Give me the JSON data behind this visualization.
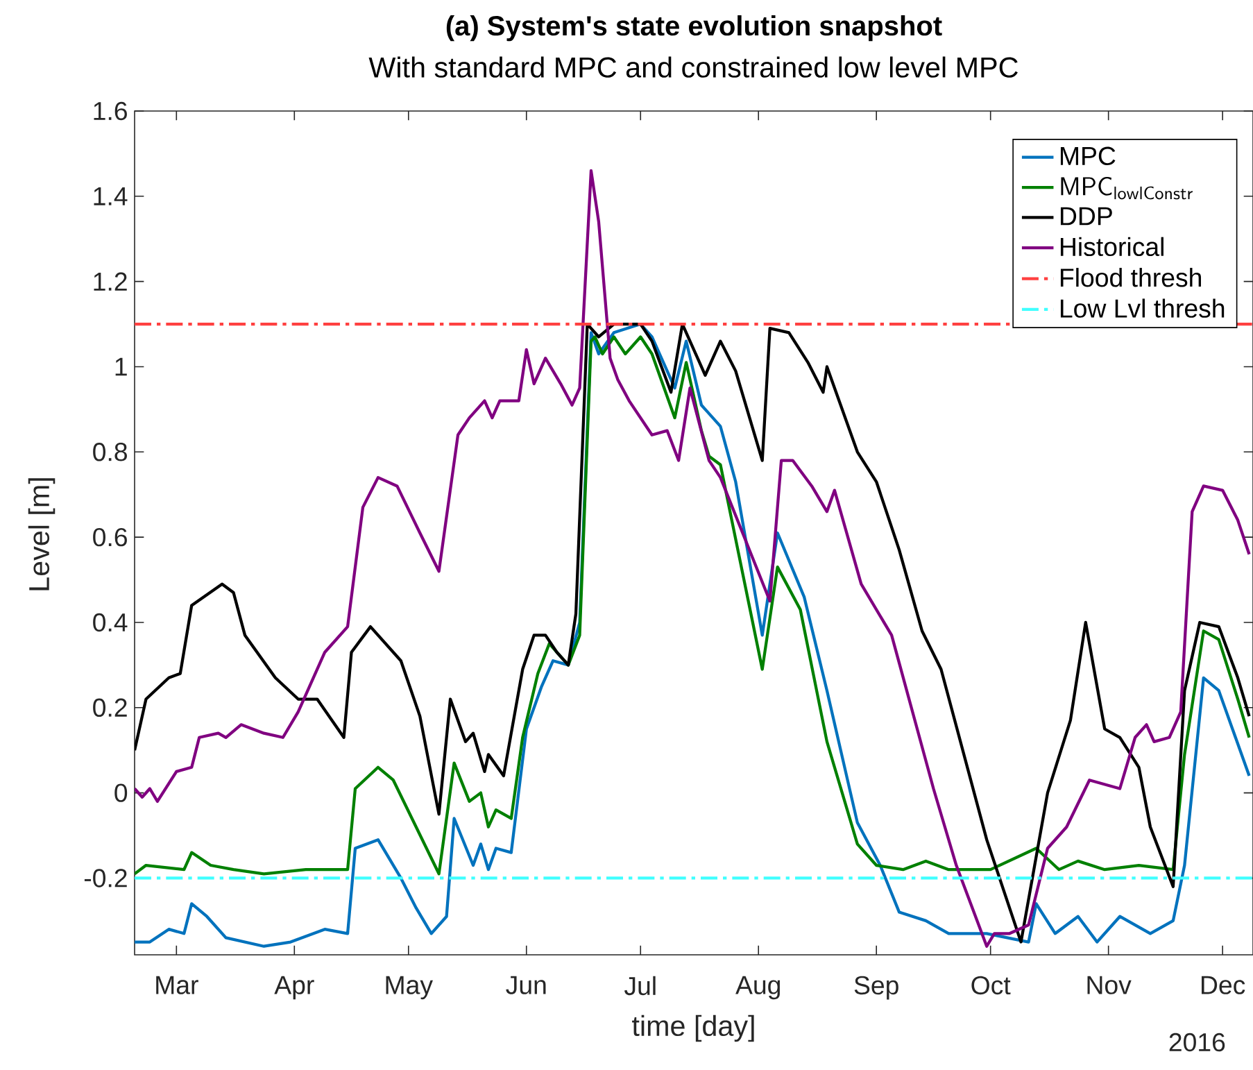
{
  "chart_data": {
    "type": "line",
    "title": "(a) System's state evolution snapshot",
    "subtitle": "With standard MPC and constrained low level MPC",
    "xlabel": "time [day]",
    "ylabel": "Level [m]",
    "annotations": [
      "2016"
    ],
    "xlim": [
      "2016-02-19",
      "2016-12-09"
    ],
    "xticks": [
      {
        "value": "2016-03-01",
        "label": "Mar"
      },
      {
        "value": "2016-04-01",
        "label": "Apr"
      },
      {
        "value": "2016-05-01",
        "label": "May"
      },
      {
        "value": "2016-06-01",
        "label": "Jun"
      },
      {
        "value": "2016-07-01",
        "label": "Jul"
      },
      {
        "value": "2016-08-01",
        "label": "Aug"
      },
      {
        "value": "2016-09-01",
        "label": "Sep"
      },
      {
        "value": "2016-10-01",
        "label": "Oct"
      },
      {
        "value": "2016-11-01",
        "label": "Nov"
      },
      {
        "value": "2016-12-01",
        "label": "Dec"
      }
    ],
    "ylim": [
      -0.38,
      1.6
    ],
    "yticks": [
      -0.2,
      0,
      0.2,
      0.4,
      0.6,
      0.8,
      1,
      1.2,
      1.4,
      1.6
    ],
    "legend": "top right",
    "line_style": "solid",
    "series": [
      {
        "name": "MPC",
        "color": "#0072bd",
        "x": [
          "2016-02-19",
          "2016-02-23",
          "2016-02-28",
          "2016-03-03",
          "2016-03-05",
          "2016-03-09",
          "2016-03-14",
          "2016-03-24",
          "2016-03-31",
          "2016-04-09",
          "2016-04-15",
          "2016-04-17",
          "2016-04-23",
          "2016-04-29",
          "2016-05-03",
          "2016-05-07",
          "2016-05-11",
          "2016-05-13",
          "2016-05-18",
          "2016-05-20",
          "2016-05-22",
          "2016-05-24",
          "2016-05-28",
          "2016-06-01",
          "2016-06-05",
          "2016-06-08",
          "2016-06-12",
          "2016-06-15",
          "2016-06-18",
          "2016-06-20",
          "2016-06-24",
          "2016-07-01",
          "2016-07-04",
          "2016-07-10",
          "2016-07-13",
          "2016-07-17",
          "2016-07-22",
          "2016-07-26",
          "2016-08-02",
          "2016-08-06",
          "2016-08-13",
          "2016-08-19",
          "2016-08-27",
          "2016-09-02",
          "2016-09-07",
          "2016-09-14",
          "2016-09-20",
          "2016-09-30",
          "2016-10-11",
          "2016-10-13",
          "2016-10-18",
          "2016-10-24",
          "2016-10-29",
          "2016-11-04",
          "2016-11-12",
          "2016-11-18",
          "2016-11-21",
          "2016-11-26",
          "2016-11-30",
          "2016-12-08"
        ],
        "values": [
          -0.35,
          -0.35,
          -0.32,
          -0.33,
          -0.26,
          -0.29,
          -0.34,
          -0.36,
          -0.35,
          -0.32,
          -0.33,
          -0.13,
          -0.11,
          -0.2,
          -0.27,
          -0.33,
          -0.29,
          -0.06,
          -0.17,
          -0.12,
          -0.18,
          -0.13,
          -0.14,
          0.15,
          0.25,
          0.31,
          0.3,
          0.4,
          1.08,
          1.03,
          1.08,
          1.1,
          1.07,
          0.95,
          1.06,
          0.91,
          0.86,
          0.73,
          0.37,
          0.61,
          0.46,
          0.24,
          -0.07,
          -0.17,
          -0.28,
          -0.3,
          -0.33,
          -0.33,
          -0.35,
          -0.26,
          -0.33,
          -0.29,
          -0.35,
          -0.29,
          -0.33,
          -0.3,
          -0.17,
          0.27,
          0.24,
          0.04
        ]
      },
      {
        "name": "\\mathsf{MPC}_{\\mathsf{lowlConstr}}",
        "color": "#008000",
        "x": [
          "2016-02-19",
          "2016-02-22",
          "2016-03-03",
          "2016-03-05",
          "2016-03-10",
          "2016-03-16",
          "2016-03-24",
          "2016-04-04",
          "2016-04-15",
          "2016-04-17",
          "2016-04-23",
          "2016-04-27",
          "2016-05-03",
          "2016-05-09",
          "2016-05-13",
          "2016-05-17",
          "2016-05-20",
          "2016-05-22",
          "2016-05-24",
          "2016-05-28",
          "2016-05-31",
          "2016-06-04",
          "2016-06-07",
          "2016-06-12",
          "2016-06-15",
          "2016-06-18",
          "2016-06-19",
          "2016-06-21",
          "2016-06-24",
          "2016-06-27",
          "2016-07-01",
          "2016-07-04",
          "2016-07-10",
          "2016-07-13",
          "2016-07-17",
          "2016-07-19",
          "2016-07-22",
          "2016-08-02",
          "2016-08-06",
          "2016-08-12",
          "2016-08-19",
          "2016-08-27",
          "2016-09-01",
          "2016-09-08",
          "2016-09-14",
          "2016-09-20",
          "2016-10-01",
          "2016-10-13",
          "2016-10-19",
          "2016-10-24",
          "2016-10-31",
          "2016-11-09",
          "2016-11-18",
          "2016-11-21",
          "2016-11-26",
          "2016-11-30",
          "2016-12-05",
          "2016-12-08"
        ],
        "values": [
          -0.19,
          -0.17,
          -0.18,
          -0.14,
          -0.17,
          -0.18,
          -0.19,
          -0.18,
          -0.18,
          0.01,
          0.06,
          0.03,
          -0.08,
          -0.19,
          0.07,
          -0.02,
          0.0,
          -0.08,
          -0.04,
          -0.06,
          0.13,
          0.28,
          0.35,
          0.3,
          0.37,
          1.06,
          1.07,
          1.03,
          1.07,
          1.03,
          1.07,
          1.03,
          0.88,
          1.01,
          0.85,
          0.79,
          0.77,
          0.29,
          0.53,
          0.43,
          0.12,
          -0.12,
          -0.17,
          -0.18,
          -0.16,
          -0.18,
          -0.18,
          -0.13,
          -0.18,
          -0.16,
          -0.18,
          -0.17,
          -0.18,
          0.09,
          0.38,
          0.36,
          0.22,
          0.13
        ]
      },
      {
        "name": "DDP",
        "color": "#000000",
        "x": [
          "2016-02-19",
          "2016-02-22",
          "2016-02-28",
          "2016-03-02",
          "2016-03-05",
          "2016-03-13",
          "2016-03-16",
          "2016-03-19",
          "2016-03-27",
          "2016-04-02",
          "2016-04-07",
          "2016-04-14",
          "2016-04-16",
          "2016-04-21",
          "2016-04-29",
          "2016-05-04",
          "2016-05-09",
          "2016-05-12",
          "2016-05-16",
          "2016-05-18",
          "2016-05-21",
          "2016-05-22",
          "2016-05-26",
          "2016-05-31",
          "2016-06-03",
          "2016-06-06",
          "2016-06-09",
          "2016-06-12",
          "2016-06-14",
          "2016-06-17",
          "2016-06-20",
          "2016-06-24",
          "2016-07-01",
          "2016-07-04",
          "2016-07-09",
          "2016-07-12",
          "2016-07-16",
          "2016-07-18",
          "2016-07-22",
          "2016-07-26",
          "2016-08-02",
          "2016-08-04",
          "2016-08-09",
          "2016-08-14",
          "2016-08-18",
          "2016-08-19",
          "2016-08-27",
          "2016-09-01",
          "2016-09-07",
          "2016-09-13",
          "2016-09-18",
          "2016-09-30",
          "2016-10-09",
          "2016-10-16",
          "2016-10-22",
          "2016-10-26",
          "2016-10-31",
          "2016-11-04",
          "2016-11-09",
          "2016-11-12",
          "2016-11-18",
          "2016-11-21",
          "2016-11-25",
          "2016-11-30",
          "2016-12-05",
          "2016-12-08"
        ],
        "values": [
          0.1,
          0.22,
          0.27,
          0.28,
          0.44,
          0.49,
          0.47,
          0.37,
          0.27,
          0.22,
          0.22,
          0.13,
          0.33,
          0.39,
          0.31,
          0.18,
          -0.05,
          0.22,
          0.12,
          0.14,
          0.05,
          0.09,
          0.04,
          0.29,
          0.37,
          0.37,
          0.33,
          0.3,
          0.42,
          1.1,
          1.07,
          1.1,
          1.1,
          1.06,
          0.94,
          1.1,
          1.02,
          0.98,
          1.06,
          0.99,
          0.78,
          1.09,
          1.08,
          1.01,
          0.94,
          1.0,
          0.8,
          0.73,
          0.57,
          0.38,
          0.29,
          -0.11,
          -0.35,
          0.0,
          0.17,
          0.4,
          0.15,
          0.13,
          0.06,
          -0.08,
          -0.22,
          0.24,
          0.4,
          0.39,
          0.27,
          0.18
        ]
      },
      {
        "name": "Historical",
        "color": "#800080",
        "x": [
          "2016-02-19",
          "2016-02-21",
          "2016-02-23",
          "2016-02-25",
          "2016-03-01",
          "2016-03-05",
          "2016-03-07",
          "2016-03-12",
          "2016-03-14",
          "2016-03-18",
          "2016-03-24",
          "2016-03-29",
          "2016-04-02",
          "2016-04-09",
          "2016-04-15",
          "2016-04-19",
          "2016-04-23",
          "2016-04-28",
          "2016-05-04",
          "2016-05-09",
          "2016-05-14",
          "2016-05-17",
          "2016-05-21",
          "2016-05-23",
          "2016-05-25",
          "2016-05-30",
          "2016-06-01",
          "2016-06-03",
          "2016-06-06",
          "2016-06-10",
          "2016-06-13",
          "2016-06-15",
          "2016-06-18",
          "2016-06-20",
          "2016-06-23",
          "2016-06-25",
          "2016-06-28",
          "2016-07-04",
          "2016-07-08",
          "2016-07-11",
          "2016-07-14",
          "2016-07-19",
          "2016-07-22",
          "2016-08-04",
          "2016-08-07",
          "2016-08-10",
          "2016-08-15",
          "2016-08-19",
          "2016-08-21",
          "2016-08-28",
          "2016-09-05",
          "2016-09-16",
          "2016-09-22",
          "2016-09-30",
          "2016-10-02",
          "2016-10-06",
          "2016-10-11",
          "2016-10-16",
          "2016-10-21",
          "2016-10-27",
          "2016-11-04",
          "2016-11-08",
          "2016-11-11",
          "2016-11-13",
          "2016-11-17",
          "2016-11-20",
          "2016-11-23",
          "2016-11-26",
          "2016-12-01",
          "2016-12-05",
          "2016-12-08"
        ],
        "values": [
          0.01,
          -0.01,
          0.01,
          -0.02,
          0.05,
          0.06,
          0.13,
          0.14,
          0.13,
          0.16,
          0.14,
          0.13,
          0.19,
          0.33,
          0.39,
          0.67,
          0.74,
          0.72,
          0.61,
          0.52,
          0.84,
          0.88,
          0.92,
          0.88,
          0.92,
          0.92,
          1.04,
          0.96,
          1.02,
          0.96,
          0.91,
          0.95,
          1.46,
          1.34,
          1.02,
          0.97,
          0.92,
          0.84,
          0.85,
          0.78,
          0.95,
          0.78,
          0.74,
          0.45,
          0.78,
          0.78,
          0.72,
          0.66,
          0.71,
          0.49,
          0.37,
          0.01,
          -0.17,
          -0.36,
          -0.33,
          -0.33,
          -0.31,
          -0.13,
          -0.08,
          0.03,
          0.01,
          0.13,
          0.16,
          0.12,
          0.13,
          0.19,
          0.66,
          0.72,
          0.71,
          0.64,
          0.56
        ]
      }
    ],
    "ref_lines": [
      {
        "axis": "y",
        "value": 1.1,
        "label": "Flood thresh",
        "color": "#ff4040",
        "line_style": "dashdot"
      },
      {
        "axis": "y",
        "value": -0.2,
        "label": "Low Lvl thresh",
        "color": "#40ffff",
        "line_style": "dashdot"
      }
    ]
  }
}
